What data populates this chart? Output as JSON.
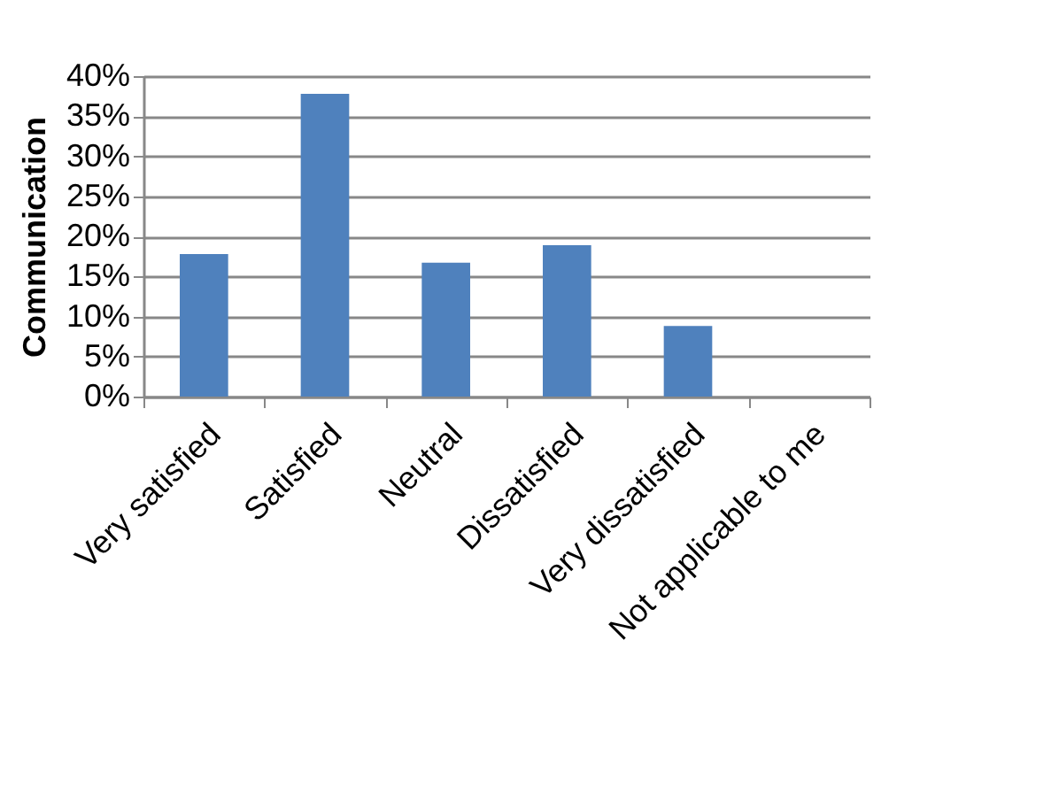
{
  "chart_data": {
    "type": "bar",
    "ylabel": "Communication",
    "categories": [
      "Very satisfied",
      "Satisfied",
      "Neutral",
      "Dissatisfied",
      "Very dissatisfied",
      "Not applicable to me"
    ],
    "values": [
      17.8,
      37.8,
      16.7,
      18.9,
      8.8,
      0
    ],
    "color": "#4f81bd",
    "ylim": [
      0,
      40
    ],
    "yticks": [
      {
        "value": 0,
        "label": "0%"
      },
      {
        "value": 5,
        "label": "5%"
      },
      {
        "value": 10,
        "label": "10%"
      },
      {
        "value": 15,
        "label": "15%"
      },
      {
        "value": 20,
        "label": "20%"
      },
      {
        "value": 25,
        "label": "25%"
      },
      {
        "value": 30,
        "label": "30%"
      },
      {
        "value": 35,
        "label": "35%"
      },
      {
        "value": 40,
        "label": "40%"
      }
    ],
    "grid": "y"
  }
}
